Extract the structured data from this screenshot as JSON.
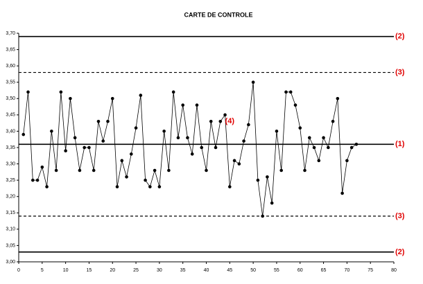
{
  "chart_data": {
    "type": "line",
    "title": "CARTE DE CONTROLE",
    "x": [
      1,
      2,
      3,
      4,
      5,
      6,
      7,
      8,
      9,
      10,
      11,
      12,
      13,
      14,
      15,
      16,
      17,
      18,
      19,
      20,
      21,
      22,
      23,
      24,
      25,
      26,
      27,
      28,
      29,
      30,
      31,
      32,
      33,
      34,
      35,
      36,
      37,
      38,
      39,
      40,
      41,
      42,
      43,
      44,
      45,
      46,
      47,
      48,
      49,
      50,
      51,
      52,
      53,
      54,
      55,
      56,
      57,
      58,
      59,
      60,
      61,
      62,
      63,
      64,
      65,
      66,
      67,
      68,
      69,
      70,
      71,
      72
    ],
    "series": [
      {
        "color": "#000000",
        "values": [
          3.39,
          3.52,
          3.25,
          3.25,
          3.29,
          3.23,
          3.4,
          3.28,
          3.52,
          3.34,
          3.5,
          3.38,
          3.28,
          3.35,
          3.35,
          3.28,
          3.43,
          3.37,
          3.43,
          3.5,
          3.23,
          3.31,
          3.26,
          3.33,
          3.41,
          3.51,
          3.25,
          3.23,
          3.28,
          3.23,
          3.4,
          3.28,
          3.52,
          3.38,
          3.48,
          3.38,
          3.33,
          3.48,
          3.35,
          3.28,
          3.43,
          3.35,
          3.43,
          3.45,
          3.23,
          3.31,
          3.3,
          3.37,
          3.42,
          3.55,
          3.25,
          3.14,
          3.26,
          3.18,
          3.4,
          3.28,
          3.52,
          3.52,
          3.48,
          3.41,
          3.28,
          3.38,
          3.35,
          3.31,
          3.38,
          3.35,
          3.43,
          3.5,
          3.21,
          3.31,
          3.35,
          3.36
        ]
      }
    ],
    "xlim": [
      0,
      80
    ],
    "xticks": [
      0,
      5,
      10,
      15,
      20,
      25,
      30,
      35,
      40,
      45,
      50,
      55,
      60,
      65,
      70,
      75,
      80
    ],
    "ylim": [
      3.0,
      3.7
    ],
    "yticks": [
      {
        "value": 3.0,
        "label": "3,00"
      },
      {
        "value": 3.05,
        "label": "3,05"
      },
      {
        "value": 3.1,
        "label": "3,10"
      },
      {
        "value": 3.15,
        "label": "3,15"
      },
      {
        "value": 3.2,
        "label": "3,20"
      },
      {
        "value": 3.25,
        "label": "3,25"
      },
      {
        "value": 3.3,
        "label": "3,30"
      },
      {
        "value": 3.35,
        "label": "3,35"
      },
      {
        "value": 3.4,
        "label": "3,40"
      },
      {
        "value": 3.45,
        "label": "3,45"
      },
      {
        "value": 3.5,
        "label": "3,50"
      },
      {
        "value": 3.55,
        "label": "3,55"
      },
      {
        "value": 3.6,
        "label": "3,60"
      },
      {
        "value": 3.65,
        "label": "3,65"
      },
      {
        "value": 3.7,
        "label": "3,70"
      }
    ],
    "reference_lines": [
      {
        "value": 3.69,
        "label": "(2)",
        "style": "solid"
      },
      {
        "value": 3.58,
        "label": "(3)",
        "style": "dashed"
      },
      {
        "value": 3.36,
        "label": "(1)",
        "style": "solid"
      },
      {
        "value": 3.14,
        "label": "(3)",
        "style": "dashed"
      },
      {
        "value": 3.03,
        "label": "(2)",
        "style": "solid"
      }
    ],
    "annotations": [
      {
        "text": "(4)",
        "x": 44,
        "y": 3.43
      }
    ],
    "label_color": "#e00000"
  }
}
